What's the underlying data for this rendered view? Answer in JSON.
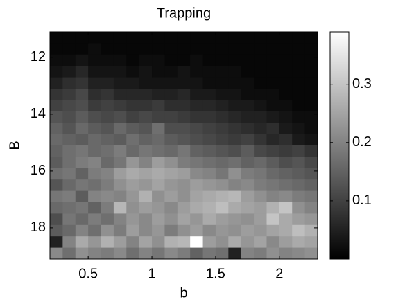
{
  "chart_data": {
    "type": "heatmap",
    "title": "Trapping",
    "x_label": "b",
    "y_label": "B",
    "x": [
      0.25,
      0.35,
      0.45,
      0.55,
      0.65,
      0.75,
      0.85,
      0.95,
      1.05,
      1.15,
      1.25,
      1.35,
      1.45,
      1.55,
      1.65,
      1.75,
      1.85,
      1.95,
      2.05,
      2.15,
      2.25
    ],
    "y": [
      11.3,
      11.7,
      12.1,
      12.5,
      12.9,
      13.3,
      13.7,
      14.1,
      14.5,
      14.9,
      15.3,
      15.7,
      16.1,
      16.5,
      16.9,
      17.3,
      17.7,
      18.1,
      18.5,
      18.9
    ],
    "z": [
      [
        0.01,
        0.01,
        0.01,
        0.01,
        0.01,
        0.01,
        0.01,
        0.01,
        0.01,
        0.01,
        0.01,
        0.01,
        0.01,
        0.01,
        0.01,
        0.01,
        0.01,
        0.01,
        0.01,
        0.01,
        0.01
      ],
      [
        0.01,
        0.01,
        0.01,
        0.02,
        0.01,
        0.01,
        0.01,
        0.01,
        0.01,
        0.01,
        0.01,
        0.01,
        0.01,
        0.01,
        0.01,
        0.01,
        0.01,
        0.01,
        0.01,
        0.01,
        0.01
      ],
      [
        0.02,
        0.02,
        0.03,
        0.02,
        0.02,
        0.02,
        0.01,
        0.02,
        0.02,
        0.01,
        0.01,
        0.02,
        0.01,
        0.01,
        0.01,
        0.01,
        0.01,
        0.01,
        0.01,
        0.01,
        0.01
      ],
      [
        0.03,
        0.04,
        0.06,
        0.03,
        0.03,
        0.03,
        0.02,
        0.03,
        0.02,
        0.02,
        0.03,
        0.02,
        0.02,
        0.02,
        0.02,
        0.01,
        0.01,
        0.01,
        0.01,
        0.01,
        0.01
      ],
      [
        0.05,
        0.07,
        0.08,
        0.05,
        0.05,
        0.04,
        0.04,
        0.03,
        0.03,
        0.03,
        0.03,
        0.03,
        0.02,
        0.02,
        0.02,
        0.02,
        0.01,
        0.01,
        0.01,
        0.01,
        0.01
      ],
      [
        0.08,
        0.09,
        0.11,
        0.07,
        0.08,
        0.06,
        0.06,
        0.06,
        0.05,
        0.05,
        0.06,
        0.04,
        0.04,
        0.03,
        0.03,
        0.02,
        0.02,
        0.02,
        0.01,
        0.01,
        0.01
      ],
      [
        0.1,
        0.11,
        0.12,
        0.09,
        0.1,
        0.09,
        0.08,
        0.08,
        0.09,
        0.07,
        0.07,
        0.06,
        0.06,
        0.05,
        0.04,
        0.04,
        0.03,
        0.02,
        0.02,
        0.01,
        0.01
      ],
      [
        0.13,
        0.12,
        0.14,
        0.12,
        0.11,
        0.12,
        0.1,
        0.11,
        0.1,
        0.1,
        0.09,
        0.08,
        0.08,
        0.07,
        0.06,
        0.05,
        0.05,
        0.04,
        0.03,
        0.02,
        0.02
      ],
      [
        0.15,
        0.13,
        0.16,
        0.14,
        0.13,
        0.16,
        0.14,
        0.13,
        0.17,
        0.12,
        0.12,
        0.11,
        0.1,
        0.09,
        0.08,
        0.07,
        0.06,
        0.07,
        0.04,
        0.03,
        0.02
      ],
      [
        0.16,
        0.15,
        0.14,
        0.16,
        0.15,
        0.14,
        0.17,
        0.15,
        0.16,
        0.14,
        0.13,
        0.12,
        0.11,
        0.1,
        0.09,
        0.1,
        0.08,
        0.06,
        0.07,
        0.04,
        0.03
      ],
      [
        0.15,
        0.17,
        0.18,
        0.16,
        0.17,
        0.19,
        0.16,
        0.18,
        0.17,
        0.16,
        0.18,
        0.15,
        0.14,
        0.13,
        0.12,
        0.14,
        0.11,
        0.1,
        0.09,
        0.1,
        0.08
      ],
      [
        0.14,
        0.17,
        0.19,
        0.2,
        0.16,
        0.18,
        0.23,
        0.2,
        0.24,
        0.22,
        0.19,
        0.18,
        0.17,
        0.16,
        0.17,
        0.15,
        0.16,
        0.14,
        0.12,
        0.13,
        0.11
      ],
      [
        0.17,
        0.18,
        0.15,
        0.19,
        0.2,
        0.24,
        0.26,
        0.25,
        0.26,
        0.25,
        0.24,
        0.21,
        0.2,
        0.18,
        0.22,
        0.19,
        0.18,
        0.16,
        0.15,
        0.14,
        0.13
      ],
      [
        0.13,
        0.16,
        0.18,
        0.17,
        0.19,
        0.22,
        0.24,
        0.23,
        0.25,
        0.23,
        0.22,
        0.24,
        0.23,
        0.22,
        0.2,
        0.21,
        0.19,
        0.18,
        0.17,
        0.16,
        0.15
      ],
      [
        0.18,
        0.19,
        0.14,
        0.2,
        0.21,
        0.2,
        0.23,
        0.27,
        0.22,
        0.24,
        0.22,
        0.25,
        0.26,
        0.27,
        0.28,
        0.24,
        0.22,
        0.2,
        0.21,
        0.19,
        0.18
      ],
      [
        0.16,
        0.17,
        0.18,
        0.15,
        0.19,
        0.28,
        0.22,
        0.24,
        0.23,
        0.21,
        0.24,
        0.26,
        0.27,
        0.29,
        0.26,
        0.25,
        0.24,
        0.27,
        0.3,
        0.22,
        0.2
      ],
      [
        0.12,
        0.18,
        0.16,
        0.19,
        0.17,
        0.2,
        0.23,
        0.21,
        0.24,
        0.22,
        0.25,
        0.23,
        0.26,
        0.24,
        0.23,
        0.22,
        0.24,
        0.3,
        0.26,
        0.24,
        0.23
      ],
      [
        0.14,
        0.16,
        0.2,
        0.17,
        0.22,
        0.19,
        0.24,
        0.21,
        0.23,
        0.19,
        0.22,
        0.24,
        0.21,
        0.23,
        0.22,
        0.24,
        0.23,
        0.25,
        0.26,
        0.29,
        0.27
      ],
      [
        0.05,
        0.2,
        0.26,
        0.23,
        0.27,
        0.24,
        0.2,
        0.25,
        0.22,
        0.27,
        0.28,
        0.39,
        0.24,
        0.22,
        0.26,
        0.23,
        0.25,
        0.21,
        0.24,
        0.26,
        0.25
      ],
      [
        0.21,
        0.17,
        0.22,
        0.2,
        0.19,
        0.21,
        0.17,
        0.2,
        0.18,
        0.21,
        0.19,
        0.15,
        0.18,
        0.17,
        0.05,
        0.2,
        0.19,
        0.22,
        0.2,
        0.21,
        0.22
      ]
    ],
    "xlim": [
      0.2,
      2.3
    ],
    "ylim": [
      11.1,
      19.1
    ],
    "y_direction": "reverse",
    "xticks": [
      0.5,
      1,
      1.5,
      2
    ],
    "yticks": [
      12,
      14,
      16,
      18
    ],
    "colormap": "gray",
    "clim": [
      0,
      0.39
    ],
    "cticks": [
      0.1,
      0.2,
      0.3
    ]
  }
}
